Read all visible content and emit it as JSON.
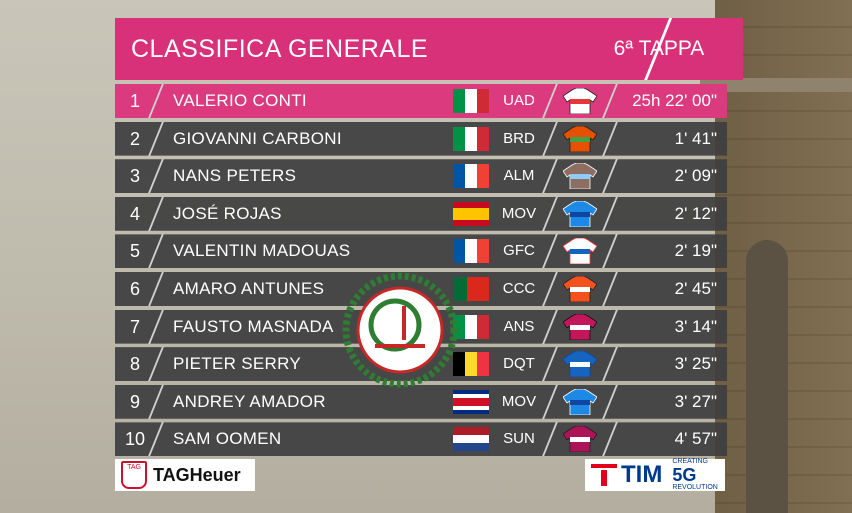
{
  "header": {
    "title": "CLASSIFICA GENERALE",
    "stage": "6ª TAPPA"
  },
  "rows": [
    {
      "pos": "1",
      "name": "VALERIO CONTI",
      "flag": "italy",
      "team": "UAD",
      "time": "25h 22' 00\"",
      "jersey": "uad-jersey"
    },
    {
      "pos": "2",
      "name": "GIOVANNI CARBONI",
      "flag": "italy",
      "team": "BRD",
      "time": "1' 41\"",
      "jersey": "brd-jersey"
    },
    {
      "pos": "3",
      "name": "NANS PETERS",
      "flag": "france",
      "team": "ALM",
      "time": "2' 09\"",
      "jersey": "alm-jersey"
    },
    {
      "pos": "4",
      "name": "JOSÉ ROJAS",
      "flag": "spain",
      "team": "MOV",
      "time": "2' 12\"",
      "jersey": "mov-jersey"
    },
    {
      "pos": "5",
      "name": "VALENTIN MADOUAS",
      "flag": "france",
      "team": "GFC",
      "time": "2' 19\"",
      "jersey": "gfc-jersey"
    },
    {
      "pos": "6",
      "name": "AMARO ANTUNES",
      "flag": "portugal",
      "team": "CCC",
      "time": "2' 45\"",
      "jersey": "ccc-jersey"
    },
    {
      "pos": "7",
      "name": "FAUSTO MASNADA",
      "flag": "italy",
      "team": "ANS",
      "time": "3' 14\"",
      "jersey": "ans-jersey"
    },
    {
      "pos": "8",
      "name": "PIETER SERRY",
      "flag": "belgium",
      "team": "DQT",
      "time": "3' 25\"",
      "jersey": "dqt-jersey"
    },
    {
      "pos": "9",
      "name": "ANDREY AMADOR",
      "flag": "costa-rica",
      "team": "MOV",
      "time": "3' 27\"",
      "jersey": "mov-jersey"
    },
    {
      "pos": "10",
      "name": "SAM OOMEN",
      "flag": "netherlands",
      "team": "SUN",
      "time": "4' 57\"",
      "jersey": "sun-jersey"
    }
  ],
  "sponsors": {
    "left": "TAGHeuer",
    "right_brand": "TIM",
    "right_tag": "CREATING",
    "right_5g": "5G",
    "right_sub": "REVOLUTION"
  },
  "watermark": {
    "icon": "cycling-club-watermark"
  },
  "colors": {
    "accent": "#d9307a",
    "row": "#3e3e40"
  }
}
